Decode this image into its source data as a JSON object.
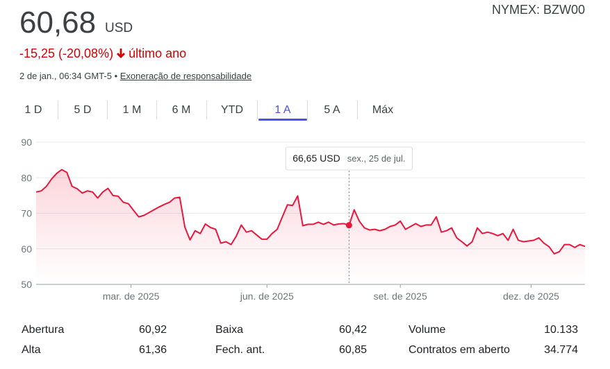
{
  "header": {
    "price": "60,68",
    "currency": "USD",
    "exchange": "NYMEX: BZW00",
    "change": "-15,25 (-20,08%)",
    "period": "último ano",
    "timestamp": "2 de jan., 06:34 GMT-5",
    "disclaimer": "Exoneração de responsabilidade"
  },
  "tabs": [
    "1 D",
    "5 D",
    "1 M",
    "6 M",
    "YTD",
    "1 A",
    "5 A",
    "Máx"
  ],
  "active_tab": "1 A",
  "chart_data": {
    "type": "line",
    "color": "#e8173b",
    "grid": true,
    "values": [
      76,
      76.3,
      77.6,
      79.6,
      81.2,
      82.3,
      81.5,
      77.6,
      76.9,
      75.7,
      76.3,
      76,
      74.3,
      76,
      77,
      75,
      74.8,
      73.1,
      72.7,
      70.8,
      69,
      69.4,
      70.2,
      71,
      71.8,
      72.5,
      73.1,
      74.3,
      74.5,
      66.1,
      62.5,
      65.1,
      64.3,
      67,
      66,
      65.5,
      61.6,
      62,
      61.2,
      63.5,
      66.7,
      64.7,
      65.1,
      63.9,
      62.7,
      62.7,
      64.3,
      65.5,
      69,
      72.4,
      72.2,
      74.9,
      66.5,
      66.9,
      66.9,
      67.5,
      66.9,
      67.5,
      66.7,
      67,
      67.1,
      66.65,
      71,
      67.8,
      65.9,
      65.3,
      65.5,
      65.1,
      65.5,
      66.3,
      66.7,
      67.8,
      65.5,
      66.3,
      67.1,
      66.3,
      66.7,
      66.7,
      69,
      64.7,
      65.1,
      65.9,
      63.1,
      62,
      60.8,
      62,
      65.9,
      64.3,
      64.7,
      64.3,
      63.7,
      64.3,
      62.4,
      65.5,
      62.4,
      62,
      62.2,
      62.4,
      63.1,
      61.6,
      60.6,
      58.6,
      59.2,
      61.2,
      61.2,
      60.4,
      61.2,
      60.68
    ],
    "xlim": [
      0,
      107
    ],
    "xticks": [
      {
        "value": 18.5,
        "label": "mar. de 2025"
      },
      {
        "value": 45,
        "label": "jun. de 2025"
      },
      {
        "value": 71,
        "label": "set. de 2025"
      },
      {
        "value": 96.5,
        "label": "dez. de 2025"
      }
    ],
    "ylim": [
      50,
      90
    ],
    "yticks": [
      50,
      60,
      70,
      80,
      90
    ],
    "tooltip": {
      "value": 66.65,
      "label": "66,65 USD",
      "date": "sex., 25 de jul."
    }
  },
  "stats": [
    [
      [
        "Abertura",
        "60,92"
      ],
      [
        "Alta",
        "61,36"
      ]
    ],
    [
      [
        "Baixa",
        "60,42"
      ],
      [
        "Fech. ant.",
        "60,85"
      ]
    ],
    [
      [
        "Volume",
        "10.133"
      ],
      [
        "Contratos em aberto",
        "34.774"
      ]
    ]
  ]
}
